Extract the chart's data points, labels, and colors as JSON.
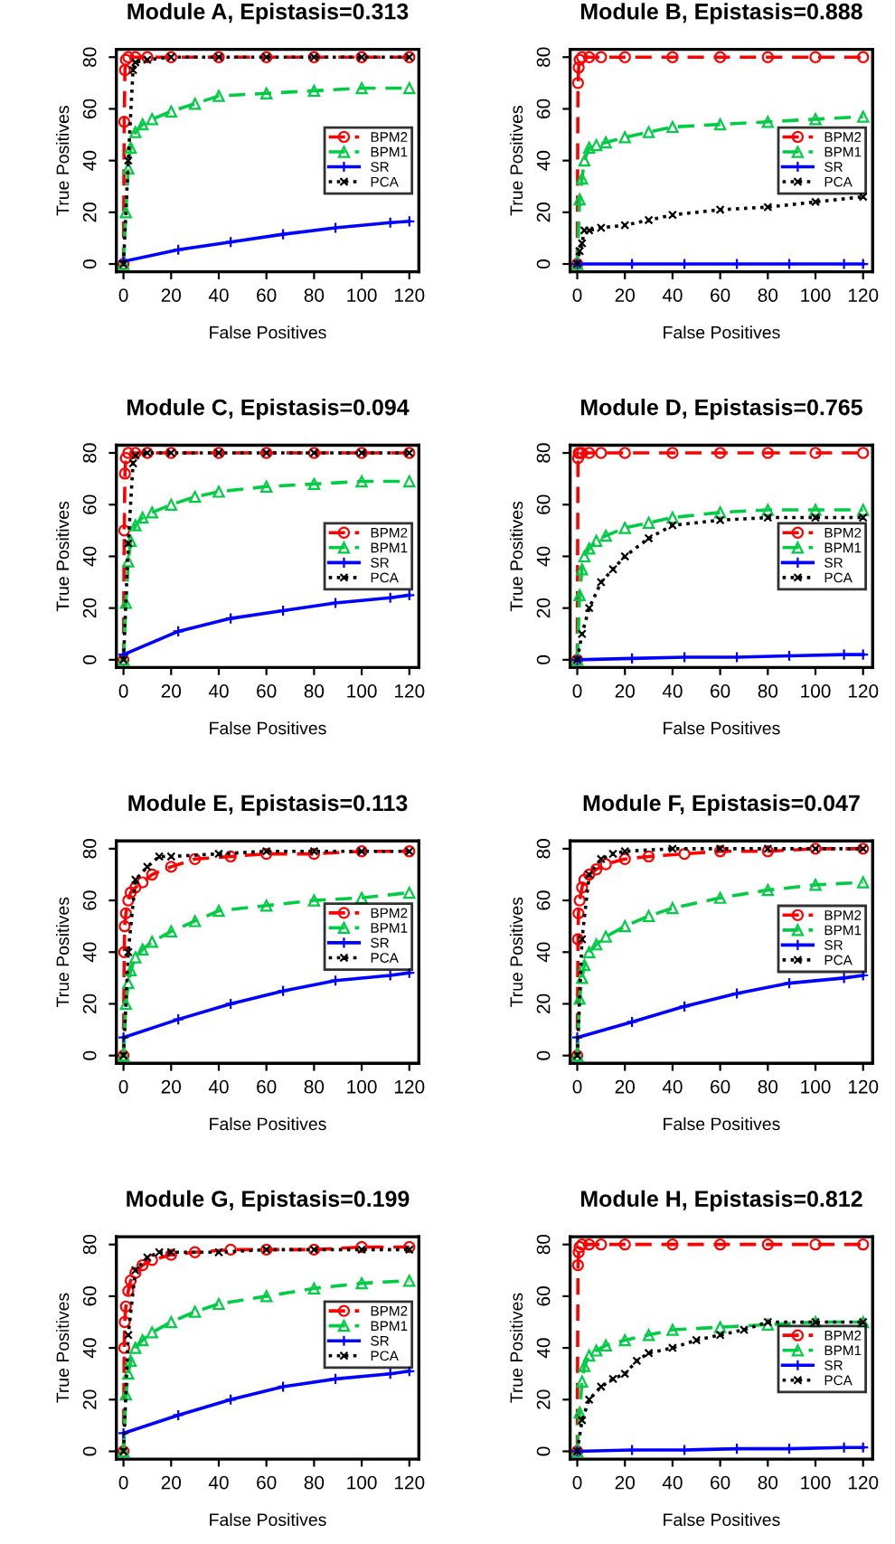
{
  "chart_data": [
    {
      "type": "line",
      "title": "Module A, Epistasis=0.313",
      "xlabel": "False Positives",
      "ylabel": "True Positives",
      "xlim": [
        -3,
        124
      ],
      "ylim": [
        -3,
        83
      ],
      "xticks": [
        0,
        20,
        40,
        60,
        80,
        100,
        120
      ],
      "yticks": [
        0,
        20,
        40,
        60,
        80
      ],
      "legend": "right",
      "series": [
        {
          "name": "BPM2",
          "color": "#ff0000",
          "marker": "circle",
          "line_style": "dashed",
          "x": [
            0,
            0.3,
            0.6,
            1,
            2,
            5,
            10,
            20,
            40,
            60,
            80,
            100,
            120
          ],
          "values": [
            0,
            55,
            75,
            79,
            80,
            80,
            80,
            80,
            80,
            80,
            80,
            80,
            80
          ]
        },
        {
          "name": "BPM1",
          "color": "#00cc44",
          "marker": "triangle",
          "line_style": "dashed",
          "x": [
            0,
            1,
            2,
            3,
            5,
            8,
            12,
            20,
            30,
            40,
            60,
            80,
            100,
            120
          ],
          "values": [
            0,
            20,
            37,
            45,
            51,
            54,
            56,
            59,
            62,
            65,
            66,
            67,
            68,
            68
          ]
        },
        {
          "name": "SR",
          "color": "#0000ff",
          "marker": "cross",
          "line_style": "solid",
          "x": [
            0,
            23,
            45,
            67,
            89,
            112,
            120
          ],
          "values": [
            1,
            5.5,
            8.5,
            11.5,
            14,
            16,
            16.5
          ]
        },
        {
          "name": "PCA",
          "color": "#000000",
          "marker": "star",
          "line_style": "dotted",
          "x": [
            0,
            2,
            4,
            5,
            10,
            20,
            40,
            60,
            80,
            100,
            120
          ],
          "values": [
            0,
            40,
            75,
            78,
            79,
            80,
            80,
            80,
            80,
            80,
            80
          ]
        }
      ]
    },
    {
      "type": "line",
      "title": "Module B, Epistasis=0.888",
      "xlabel": "False Positives",
      "ylabel": "True Positives",
      "xlim": [
        -3,
        124
      ],
      "ylim": [
        -3,
        83
      ],
      "xticks": [
        0,
        20,
        40,
        60,
        80,
        100,
        120
      ],
      "yticks": [
        0,
        20,
        40,
        60,
        80
      ],
      "legend": "right",
      "series": [
        {
          "name": "BPM2",
          "color": "#ff0000",
          "marker": "circle",
          "line_style": "dashed",
          "x": [
            0,
            0.3,
            0.6,
            1,
            2,
            5,
            10,
            20,
            40,
            60,
            80,
            100,
            120
          ],
          "values": [
            0,
            70,
            76,
            79,
            80,
            80,
            80,
            80,
            80,
            80,
            80,
            80,
            80
          ]
        },
        {
          "name": "BPM1",
          "color": "#00cc44",
          "marker": "triangle",
          "line_style": "dashed",
          "x": [
            0,
            1,
            2,
            3,
            5,
            8,
            12,
            20,
            30,
            40,
            60,
            80,
            100,
            120
          ],
          "values": [
            0,
            25,
            33,
            40,
            45,
            46,
            47,
            49,
            51,
            53,
            54,
            55,
            56,
            57
          ]
        },
        {
          "name": "SR",
          "color": "#0000ff",
          "marker": "cross",
          "line_style": "solid",
          "x": [
            0,
            23,
            45,
            67,
            89,
            112,
            120
          ],
          "values": [
            0,
            0,
            0,
            0,
            0,
            0,
            0
          ]
        },
        {
          "name": "PCA",
          "color": "#000000",
          "marker": "star",
          "line_style": "dotted",
          "x": [
            0,
            1,
            2,
            3,
            5,
            10,
            20,
            30,
            40,
            60,
            80,
            100,
            120
          ],
          "values": [
            0,
            5,
            8,
            13,
            13,
            14,
            15,
            17,
            19,
            21,
            22,
            24,
            26
          ]
        }
      ]
    },
    {
      "type": "line",
      "title": "Module C, Epistasis=0.094",
      "xlabel": "False Positives",
      "ylabel": "True Positives",
      "xlim": [
        -3,
        124
      ],
      "ylim": [
        -3,
        83
      ],
      "xticks": [
        0,
        20,
        40,
        60,
        80,
        100,
        120
      ],
      "yticks": [
        0,
        20,
        40,
        60,
        80
      ],
      "legend": "right",
      "series": [
        {
          "name": "BPM2",
          "color": "#ff0000",
          "marker": "circle",
          "line_style": "dashed",
          "x": [
            0,
            0.3,
            0.6,
            1,
            2,
            5,
            10,
            20,
            40,
            60,
            80,
            100,
            120
          ],
          "values": [
            0,
            50,
            72,
            78,
            80,
            80,
            80,
            80,
            80,
            80,
            80,
            80,
            80
          ]
        },
        {
          "name": "BPM1",
          "color": "#00cc44",
          "marker": "triangle",
          "line_style": "dashed",
          "x": [
            0,
            1,
            2,
            3,
            5,
            8,
            12,
            20,
            30,
            40,
            60,
            80,
            100,
            120
          ],
          "values": [
            0,
            22,
            38,
            46,
            52,
            55,
            57,
            60,
            63,
            65,
            67,
            68,
            69,
            69
          ]
        },
        {
          "name": "SR",
          "color": "#0000ff",
          "marker": "cross",
          "line_style": "solid",
          "x": [
            0,
            23,
            45,
            67,
            89,
            112,
            120
          ],
          "values": [
            2,
            11,
            16,
            19,
            22,
            24,
            25
          ]
        },
        {
          "name": "PCA",
          "color": "#000000",
          "marker": "star",
          "line_style": "dotted",
          "x": [
            0,
            2,
            4,
            5,
            10,
            20,
            40,
            60,
            80,
            100,
            120
          ],
          "values": [
            0,
            45,
            76,
            79,
            80,
            80,
            80,
            80,
            80,
            80,
            80
          ]
        }
      ]
    },
    {
      "type": "line",
      "title": "Module D, Epistasis=0.765",
      "xlabel": "False Positives",
      "ylabel": "True Positives",
      "xlim": [
        -3,
        124
      ],
      "ylim": [
        -3,
        83
      ],
      "xticks": [
        0,
        20,
        40,
        60,
        80,
        100,
        120
      ],
      "yticks": [
        0,
        20,
        40,
        60,
        80
      ],
      "legend": "right",
      "series": [
        {
          "name": "BPM2",
          "color": "#ff0000",
          "marker": "circle",
          "line_style": "dashed",
          "x": [
            0,
            0.3,
            0.6,
            1,
            2,
            5,
            10,
            20,
            40,
            60,
            80,
            100,
            120
          ],
          "values": [
            0,
            78,
            80,
            80,
            80,
            80,
            80,
            80,
            80,
            80,
            80,
            80,
            80
          ]
        },
        {
          "name": "BPM1",
          "color": "#00cc44",
          "marker": "triangle",
          "line_style": "dashed",
          "x": [
            0,
            1,
            2,
            3,
            5,
            8,
            12,
            20,
            30,
            40,
            60,
            80,
            100,
            120
          ],
          "values": [
            0,
            25,
            35,
            40,
            43,
            46,
            48,
            51,
            53,
            55,
            57,
            58,
            58,
            58
          ]
        },
        {
          "name": "SR",
          "color": "#0000ff",
          "marker": "cross",
          "line_style": "solid",
          "x": [
            0,
            23,
            45,
            67,
            89,
            112,
            120
          ],
          "values": [
            0,
            0.5,
            1,
            1,
            1.5,
            2,
            2
          ]
        },
        {
          "name": "PCA",
          "color": "#000000",
          "marker": "star",
          "line_style": "dotted",
          "x": [
            0,
            2,
            5,
            10,
            15,
            20,
            30,
            40,
            60,
            80,
            100,
            120
          ],
          "values": [
            0,
            10,
            20,
            30,
            35,
            40,
            47,
            52,
            54,
            55,
            55,
            55
          ]
        }
      ]
    },
    {
      "type": "line",
      "title": "Module E, Epistasis=0.113",
      "xlabel": "False Positives",
      "ylabel": "True Positives",
      "xlim": [
        -3,
        124
      ],
      "ylim": [
        -3,
        83
      ],
      "xticks": [
        0,
        20,
        40,
        60,
        80,
        100,
        120
      ],
      "yticks": [
        0,
        20,
        40,
        60,
        80
      ],
      "legend": "right",
      "series": [
        {
          "name": "BPM2",
          "color": "#ff0000",
          "marker": "circle",
          "line_style": "dashed",
          "x": [
            0,
            0.3,
            0.5,
            1,
            2,
            3,
            5,
            8,
            12,
            20,
            30,
            45,
            60,
            80,
            100,
            120
          ],
          "values": [
            0,
            40,
            50,
            55,
            60,
            63,
            65,
            67,
            70,
            73,
            76,
            77,
            78,
            78,
            79,
            79
          ]
        },
        {
          "name": "BPM1",
          "color": "#00cc44",
          "marker": "triangle",
          "line_style": "dashed",
          "x": [
            0,
            1,
            2,
            3,
            5,
            8,
            12,
            20,
            30,
            40,
            60,
            80,
            100,
            120
          ],
          "values": [
            0,
            20,
            28,
            33,
            38,
            41,
            44,
            48,
            52,
            56,
            58,
            60,
            61,
            63
          ]
        },
        {
          "name": "SR",
          "color": "#0000ff",
          "marker": "cross",
          "line_style": "solid",
          "x": [
            0,
            23,
            45,
            67,
            89,
            112,
            120
          ],
          "values": [
            7,
            14,
            20,
            25,
            29,
            31,
            32
          ]
        },
        {
          "name": "PCA",
          "color": "#000000",
          "marker": "star",
          "line_style": "dotted",
          "x": [
            0,
            2,
            5,
            10,
            15,
            20,
            40,
            60,
            80,
            100,
            120
          ],
          "values": [
            0,
            40,
            68,
            73,
            77,
            77,
            78,
            79,
            79,
            79,
            79
          ]
        }
      ]
    },
    {
      "type": "line",
      "title": "Module F, Epistasis=0.047",
      "xlabel": "False Positives",
      "ylabel": "True Positives",
      "xlim": [
        -3,
        124
      ],
      "ylim": [
        -3,
        83
      ],
      "xticks": [
        0,
        20,
        40,
        60,
        80,
        100,
        120
      ],
      "yticks": [
        0,
        20,
        40,
        60,
        80
      ],
      "legend": "right",
      "series": [
        {
          "name": "BPM2",
          "color": "#ff0000",
          "marker": "circle",
          "line_style": "dashed",
          "x": [
            0,
            0.3,
            0.5,
            1,
            2,
            3,
            5,
            8,
            12,
            20,
            30,
            45,
            60,
            80,
            100,
            120
          ],
          "values": [
            0,
            45,
            55,
            60,
            65,
            68,
            70,
            72,
            74,
            76,
            77,
            78,
            79,
            79,
            80,
            80
          ]
        },
        {
          "name": "BPM1",
          "color": "#00cc44",
          "marker": "triangle",
          "line_style": "dashed",
          "x": [
            0,
            1,
            2,
            3,
            5,
            8,
            12,
            20,
            30,
            40,
            60,
            80,
            100,
            120
          ],
          "values": [
            0,
            22,
            30,
            35,
            40,
            43,
            46,
            50,
            54,
            57,
            61,
            64,
            66,
            67
          ]
        },
        {
          "name": "SR",
          "color": "#0000ff",
          "marker": "cross",
          "line_style": "solid",
          "x": [
            0,
            23,
            45,
            67,
            89,
            112,
            120
          ],
          "values": [
            7,
            13,
            19,
            24,
            28,
            30,
            31
          ]
        },
        {
          "name": "PCA",
          "color": "#000000",
          "marker": "star",
          "line_style": "dotted",
          "x": [
            0,
            2,
            5,
            10,
            15,
            20,
            40,
            60,
            80,
            100,
            120
          ],
          "values": [
            0,
            45,
            70,
            76,
            78,
            79,
            80,
            80,
            80,
            80,
            80
          ]
        }
      ]
    },
    {
      "type": "line",
      "title": "Module G, Epistasis=0.199",
      "xlabel": "False Positives",
      "ylabel": "True Positives",
      "xlim": [
        -3,
        124
      ],
      "ylim": [
        -3,
        83
      ],
      "xticks": [
        0,
        20,
        40,
        60,
        80,
        100,
        120
      ],
      "yticks": [
        0,
        20,
        40,
        60,
        80
      ],
      "legend": "right",
      "series": [
        {
          "name": "BPM2",
          "color": "#ff0000",
          "marker": "circle",
          "line_style": "dashed",
          "x": [
            0,
            0.3,
            0.5,
            1,
            2,
            3,
            5,
            8,
            12,
            20,
            30,
            45,
            60,
            80,
            100,
            120
          ],
          "values": [
            0,
            40,
            50,
            56,
            62,
            66,
            69,
            72,
            74,
            76,
            77,
            78,
            78,
            78,
            79,
            79
          ]
        },
        {
          "name": "BPM1",
          "color": "#00cc44",
          "marker": "triangle",
          "line_style": "dashed",
          "x": [
            0,
            1,
            2,
            3,
            5,
            8,
            12,
            20,
            30,
            40,
            60,
            80,
            100,
            120
          ],
          "values": [
            0,
            22,
            30,
            35,
            40,
            43,
            46,
            50,
            54,
            57,
            60,
            63,
            65,
            66
          ]
        },
        {
          "name": "SR",
          "color": "#0000ff",
          "marker": "cross",
          "line_style": "solid",
          "x": [
            0,
            23,
            45,
            67,
            89,
            112,
            120
          ],
          "values": [
            7,
            14,
            20,
            25,
            28,
            30,
            31
          ]
        },
        {
          "name": "PCA",
          "color": "#000000",
          "marker": "star",
          "line_style": "dotted",
          "x": [
            0,
            2,
            5,
            10,
            15,
            20,
            40,
            60,
            80,
            100,
            120
          ],
          "values": [
            0,
            45,
            70,
            75,
            77,
            77,
            77,
            78,
            78,
            78,
            78
          ]
        }
      ]
    },
    {
      "type": "line",
      "title": "Module H, Epistasis=0.812",
      "xlabel": "False Positives",
      "ylabel": "True Positives",
      "xlim": [
        -3,
        124
      ],
      "ylim": [
        -3,
        83
      ],
      "xticks": [
        0,
        20,
        40,
        60,
        80,
        100,
        120
      ],
      "yticks": [
        0,
        20,
        40,
        60,
        80
      ],
      "legend": "right",
      "series": [
        {
          "name": "BPM2",
          "color": "#ff0000",
          "marker": "circle",
          "line_style": "dashed",
          "x": [
            0,
            0.3,
            0.6,
            1,
            2,
            5,
            10,
            20,
            40,
            60,
            80,
            100,
            120
          ],
          "values": [
            0,
            72,
            77,
            79,
            80,
            80,
            80,
            80,
            80,
            80,
            80,
            80,
            80
          ]
        },
        {
          "name": "BPM1",
          "color": "#00cc44",
          "marker": "triangle",
          "line_style": "dashed",
          "x": [
            0,
            1,
            2,
            3,
            5,
            8,
            12,
            20,
            30,
            40,
            60,
            80,
            100,
            120
          ],
          "values": [
            0,
            15,
            27,
            33,
            37,
            39,
            41,
            43,
            45,
            47,
            48,
            49,
            50,
            50
          ]
        },
        {
          "name": "SR",
          "color": "#0000ff",
          "marker": "cross",
          "line_style": "solid",
          "x": [
            0,
            23,
            45,
            67,
            89,
            112,
            120
          ],
          "values": [
            0,
            0.5,
            0.5,
            1,
            1,
            1.5,
            1.5
          ]
        },
        {
          "name": "PCA",
          "color": "#000000",
          "marker": "star",
          "line_style": "dotted",
          "x": [
            0,
            2,
            5,
            10,
            15,
            20,
            25,
            30,
            40,
            50,
            60,
            70,
            80,
            100,
            120
          ],
          "values": [
            0,
            12,
            20,
            25,
            28,
            30,
            35,
            38,
            40,
            43,
            45,
            47,
            50,
            50,
            50
          ]
        }
      ]
    }
  ]
}
